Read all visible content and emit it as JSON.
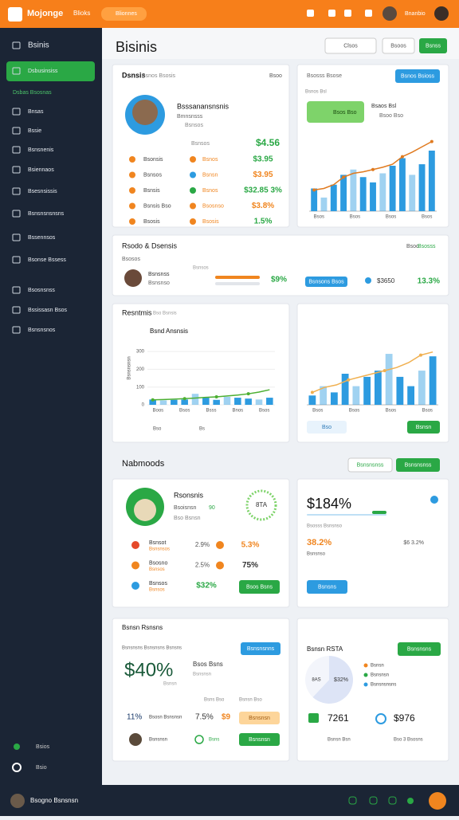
{
  "topbar": {
    "brand": "Mojonge",
    "nav": "Blioks",
    "search": "Blionnes",
    "user": "Bnanbio"
  },
  "sidebar": {
    "items": [
      "Bsinis",
      "Dsbusinsiss",
      "Bnsas",
      "Bssie",
      "Bsnsnenis",
      "Bsiennaos",
      "Bsesnsissis",
      "Bsnsnsnsnsns",
      "Bssennsos",
      "Bsonse Bssess",
      "Bsosnsnss",
      "Bssissasn Bsos",
      "Bsnsnsnos"
    ],
    "section": "Dsbas Bsosnas",
    "footer": [
      "Bsios",
      "Bsio"
    ]
  },
  "header": {
    "title": "Bisinis",
    "buttons": [
      "Clsos",
      "Bsoos",
      "Bsnss"
    ]
  },
  "profile": {
    "title": "Dsnsis",
    "tag": "Bsnos Bsosis",
    "menu": "Bsoo",
    "name": "Bsssanansnsnis",
    "role": "Bmnsnsss",
    "sub": "Bsnsos",
    "label": "Bsnsos",
    "stat": "$4.56",
    "rows": [
      [
        "Bsonsis",
        "Bsnos",
        "$3.95"
      ],
      [
        "Bsnsos",
        "Bsnsn",
        "$3.95"
      ],
      [
        "Bsnsis",
        "Bsnos",
        "$32.85 3%"
      ],
      [
        "Bsnsis Bso",
        "Bsosnso",
        "$3.8%"
      ],
      [
        "Bsosis",
        "Bsosis",
        "1.5%"
      ]
    ]
  },
  "trend": {
    "title": "Bsosss Bsose",
    "button": "Bsnos Bsioss",
    "hl": [
      "Bsnos Bsl",
      "Bsos Bso"
    ],
    "side": [
      "Bsaos Bsl",
      "Bsoo Bso"
    ],
    "chart": {
      "bars": [
        30,
        18,
        35,
        48,
        55,
        45,
        38,
        50,
        60,
        70,
        48,
        62,
        80
      ],
      "line": [
        28,
        30,
        35,
        45,
        50,
        52,
        55,
        58,
        62,
        72,
        78,
        85,
        92
      ],
      "ylim": [
        0,
        100
      ],
      "bar_color": "#2d9be0",
      "line_color": "#e07a1f",
      "x": [
        "Bsos",
        "Bsos",
        "Bsos",
        "Bsos"
      ]
    }
  },
  "summary": {
    "title": "Rsodo & Dsensis",
    "sub": "Bsosos",
    "menu": "Bsoo",
    "tag": "Bsosss",
    "name": "Bsnsnss",
    "role": "Bsnsnso",
    "label": "Bsnsos",
    "pct": "$9%",
    "button": "Bsnsons Bsos",
    "amount": "$3650",
    "change": "13.3%"
  },
  "results": {
    "title": "Resntmis",
    "tag": "Bso Bsnsis",
    "inner": "Bsnd Ansnsis",
    "ytitle": "Bsnsnsnsn",
    "footer": [
      "Bso",
      "Bs"
    ],
    "chart": {
      "bars": [
        30,
        25,
        28,
        30,
        62,
        40,
        28,
        45,
        40,
        35,
        30,
        40
      ],
      "line": [
        28,
        30,
        32,
        35,
        38,
        42,
        45,
        50,
        55,
        62,
        72,
        85
      ],
      "ylim": [
        0,
        350
      ],
      "yticks": [
        0,
        100,
        200,
        300
      ],
      "bar_color": "#2d9be0",
      "line_color": "#4caf32",
      "x": [
        "Boos",
        "Bsos",
        "Bsss",
        "Bnos",
        "Bsos"
      ]
    }
  },
  "growth": {
    "button": "Bso",
    "action": "Bsnsn",
    "chart": {
      "bars": [
        15,
        30,
        20,
        50,
        30,
        45,
        55,
        82,
        45,
        30,
        55,
        78
      ],
      "line": [
        20,
        28,
        32,
        40,
        45,
        50,
        55,
        60,
        68,
        80,
        85
      ],
      "ylim": [
        0,
        100
      ],
      "bar_color": "#2d9be0",
      "line_color": "#f0b050",
      "x": [
        "Bsos",
        "Bsos",
        "Bsos",
        "Bsos"
      ]
    }
  },
  "section": {
    "title": "Nabmoods",
    "buttons": [
      "Bsnsnsnss",
      "Bsnsnsnss"
    ]
  },
  "team": {
    "name": "Rsonsnis",
    "role": "Bsoisnsn",
    "score": "90",
    "sub": "Bso Bsnsn",
    "gauge": "8TA",
    "button": "Bsos Bsns",
    "rows": [
      [
        "Bsnsot",
        "Bsnsnsos",
        "2.9%",
        "5.3%"
      ],
      [
        "Bsosno",
        "Bsnsos",
        "2.5%",
        "75%"
      ],
      [
        "Bsnsos",
        "Bsnsos",
        "",
        "$32%"
      ]
    ]
  },
  "balance": {
    "big": "$184%",
    "sub": "Bsosss Bsnsnso",
    "pct": "38.2%",
    "pct_label": "Bsnsnso",
    "side": "$6 3.2%",
    "button": "Bsnsns"
  },
  "revenue": {
    "title": "Bsnsn Rsnsns",
    "tag": "Bsnsnsns Bsnsnsns Bsnsns",
    "button": "Bsnsnsnns",
    "big": "$40%",
    "head": "Bsos Bsns",
    "lines": [
      "Bsnsnsn",
      "Bsnsn"
    ],
    "mini": [
      "Bsns Bso",
      "Bsnsn Bso"
    ],
    "rows": [
      [
        "11%",
        "Bsosn Bsnsnsn",
        "7.5%",
        "$9",
        "Bsnsnsn"
      ],
      [
        "",
        "Bsnsnsn",
        "",
        "Bsns",
        "Bsnsnsn"
      ]
    ]
  },
  "share": {
    "title": "Bsnsn RSTA",
    "button": "Bsnsnsns",
    "donut": {
      "values": [
        62,
        38
      ],
      "colors": [
        "#dde4f6",
        "#f3f5fb"
      ],
      "labels": [
        "8AS",
        "$32%"
      ]
    },
    "legend": [
      "Bsnsn",
      "Bsnsnsn",
      "Bsnsnsnsns"
    ],
    "stats": [
      "7261",
      "Bsnsn Bsn",
      "$976",
      "Bso 3 Bsosns"
    ]
  },
  "bottombar": {
    "user": "Bsogno Bsnsnsn"
  }
}
